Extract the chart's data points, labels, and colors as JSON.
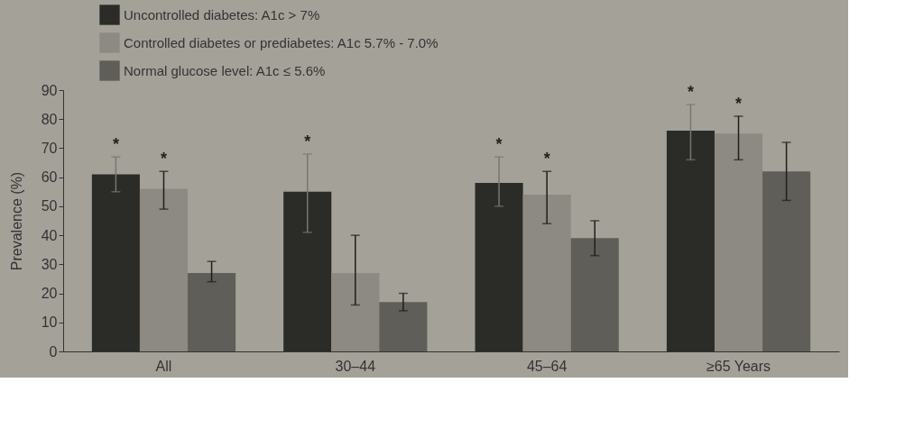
{
  "chart_data": {
    "type": "bar",
    "ylabel": "Prevalence (%)",
    "categories": [
      "All",
      "30–44",
      "45–64",
      "≥65 Years"
    ],
    "ylim": [
      0,
      90
    ],
    "yticks": [
      0,
      10,
      20,
      30,
      40,
      50,
      60,
      70,
      80,
      90
    ],
    "grid": false,
    "legend": "top left",
    "series": [
      {
        "name": "Uncontrolled diabetes: A1c > 7%",
        "color": "#2b2b28",
        "values": [
          61,
          55,
          58,
          76
        ],
        "errors": [
          [
            55,
            67
          ],
          [
            41,
            68
          ],
          [
            50,
            67
          ],
          [
            66,
            85
          ]
        ],
        "value_labels": [
          "*",
          "*",
          "*",
          "*"
        ]
      },
      {
        "name": "Controlled diabetes or prediabetes: A1c 5.7% - 7.0%",
        "color": "#8c8a82",
        "values": [
          56,
          27,
          54,
          75
        ],
        "errors": [
          [
            49,
            62
          ],
          [
            16,
            40
          ],
          [
            44,
            62
          ],
          [
            66,
            81
          ]
        ],
        "value_labels": [
          "*",
          null,
          "*",
          "*"
        ]
      },
      {
        "name": "Normal glucose level: A1c ≤ 5.6%",
        "color": "#5f5e58",
        "values": [
          27,
          17,
          39,
          62
        ],
        "errors": [
          [
            24,
            31
          ],
          [
            14,
            20
          ],
          [
            33,
            45
          ],
          [
            52,
            72
          ]
        ]
      }
    ]
  }
}
